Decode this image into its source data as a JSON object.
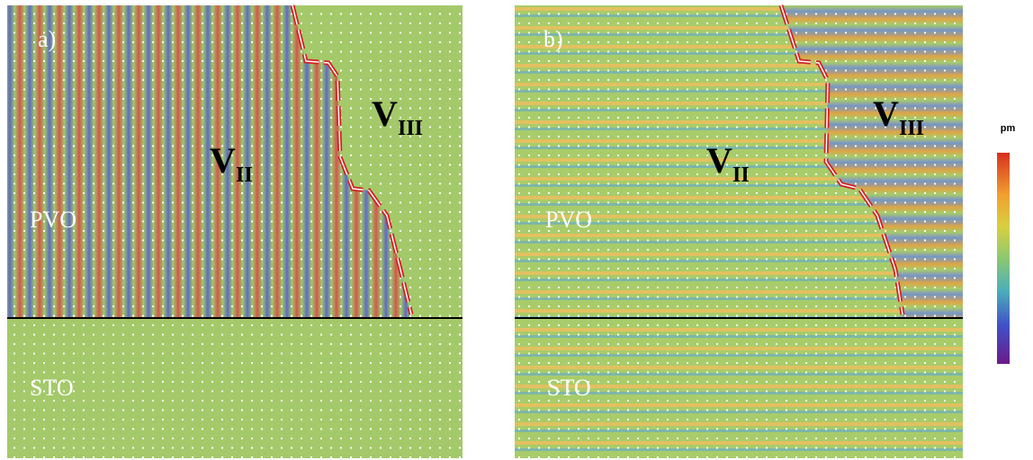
{
  "panels": [
    {
      "label": "a)",
      "regions": [
        {
          "main": "V",
          "sub": "II"
        },
        {
          "main": "V",
          "sub": "III"
        }
      ],
      "layers": [
        "PVO",
        "STO"
      ]
    },
    {
      "label": "b)",
      "regions": [
        {
          "main": "V",
          "sub": "II"
        },
        {
          "main": "V",
          "sub": "III"
        }
      ],
      "layers": [
        "PVO",
        "STO"
      ]
    }
  ],
  "colorbar": {
    "unit": "pm",
    "lim": [
      -30,
      30
    ],
    "ticks": [
      30,
      20,
      10,
      0,
      -10,
      -20,
      -30
    ]
  }
}
